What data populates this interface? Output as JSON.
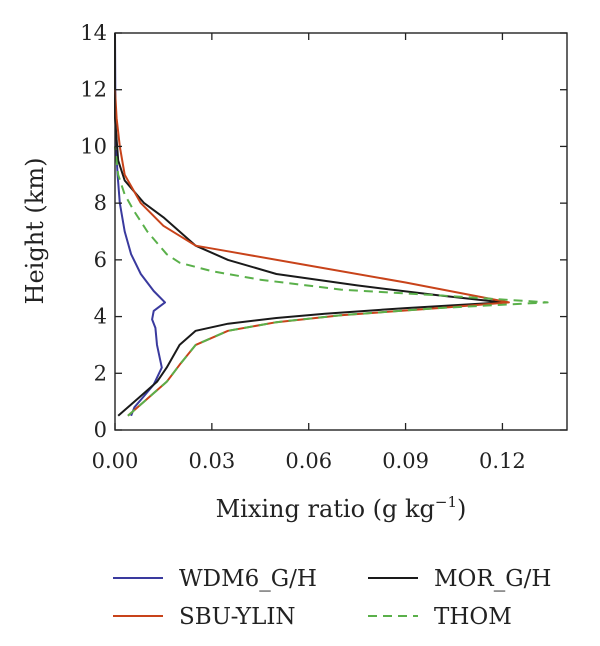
{
  "chart_data": {
    "type": "line",
    "xlabel": "Mixing ratio (g kg",
    "xlabel_exponent": "−1",
    "xlabel_close": ")",
    "ylabel": "Height (km)",
    "xlim": [
      0,
      0.14
    ],
    "ylim": [
      0,
      14
    ],
    "x_ticks": [
      0,
      0.03,
      0.06,
      0.09,
      0.12
    ],
    "x_tick_labels": [
      "0.00",
      "0.03",
      "0.06",
      "0.09",
      "0.12"
    ],
    "y_ticks": [
      0,
      2,
      4,
      6,
      8,
      10,
      12,
      14
    ],
    "y_tick_labels": [
      "0",
      "2",
      "4",
      "6",
      "8",
      "10",
      "12",
      "14"
    ],
    "grid": false,
    "legend_position": "bottom",
    "series": [
      {
        "name": "WDM6_G/H",
        "color": "#3a3a9e",
        "dash": "solid",
        "points": [
          [
            0.005,
            0.5
          ],
          [
            0.006,
            0.8
          ],
          [
            0.009,
            1.2
          ],
          [
            0.012,
            1.6
          ],
          [
            0.0145,
            2.2
          ],
          [
            0.013,
            3.0
          ],
          [
            0.0125,
            3.6
          ],
          [
            0.0115,
            3.9
          ],
          [
            0.012,
            4.2
          ],
          [
            0.0155,
            4.5
          ],
          [
            0.012,
            4.9
          ],
          [
            0.008,
            5.5
          ],
          [
            0.005,
            6.2
          ],
          [
            0.003,
            7.0
          ],
          [
            0.0015,
            8.0
          ],
          [
            0.0008,
            9.0
          ],
          [
            0.0003,
            10.0
          ],
          [
            0.0001,
            12.0
          ],
          [
            0.0,
            14.0
          ]
        ]
      },
      {
        "name": "MOR_G/H",
        "color": "#1a1a1a",
        "dash": "solid",
        "points": [
          [
            0.001,
            0.5
          ],
          [
            0.005,
            0.9
          ],
          [
            0.009,
            1.3
          ],
          [
            0.013,
            1.7
          ],
          [
            0.016,
            2.2
          ],
          [
            0.02,
            3.0
          ],
          [
            0.025,
            3.5
          ],
          [
            0.035,
            3.75
          ],
          [
            0.05,
            3.95
          ],
          [
            0.065,
            4.1
          ],
          [
            0.09,
            4.3
          ],
          [
            0.12,
            4.5
          ],
          [
            0.1,
            4.75
          ],
          [
            0.075,
            5.1
          ],
          [
            0.05,
            5.5
          ],
          [
            0.035,
            6.0
          ],
          [
            0.025,
            6.5
          ],
          [
            0.015,
            7.5
          ],
          [
            0.009,
            8.0
          ],
          [
            0.003,
            8.8
          ],
          [
            0.001,
            9.5
          ],
          [
            0.0,
            11.0
          ],
          [
            0.0,
            14.0
          ]
        ]
      },
      {
        "name": "SBU-YLIN",
        "color": "#c8431a",
        "dash": "solid",
        "points": [
          [
            0.004,
            0.5
          ],
          [
            0.008,
            0.9
          ],
          [
            0.012,
            1.3
          ],
          [
            0.016,
            1.7
          ],
          [
            0.02,
            2.3
          ],
          [
            0.025,
            3.0
          ],
          [
            0.035,
            3.5
          ],
          [
            0.05,
            3.8
          ],
          [
            0.07,
            4.05
          ],
          [
            0.1,
            4.3
          ],
          [
            0.122,
            4.5
          ],
          [
            0.09,
            5.2
          ],
          [
            0.06,
            5.8
          ],
          [
            0.035,
            6.3
          ],
          [
            0.025,
            6.5
          ],
          [
            0.015,
            7.2
          ],
          [
            0.008,
            8.0
          ],
          [
            0.003,
            9.0
          ],
          [
            0.0015,
            10.0
          ],
          [
            0.0005,
            11.0
          ],
          [
            0.0,
            12.0
          ]
        ]
      },
      {
        "name": "THOM",
        "color": "#5ab04a",
        "dash": "dashed",
        "points": [
          [
            0.004,
            0.5
          ],
          [
            0.008,
            0.9
          ],
          [
            0.012,
            1.3
          ],
          [
            0.016,
            1.7
          ],
          [
            0.02,
            2.3
          ],
          [
            0.025,
            3.0
          ],
          [
            0.035,
            3.5
          ],
          [
            0.05,
            3.8
          ],
          [
            0.07,
            4.05
          ],
          [
            0.1,
            4.3
          ],
          [
            0.134,
            4.5
          ],
          [
            0.1,
            4.75
          ],
          [
            0.07,
            4.95
          ],
          [
            0.045,
            5.3
          ],
          [
            0.03,
            5.6
          ],
          [
            0.02,
            5.9
          ],
          [
            0.016,
            6.2
          ],
          [
            0.01,
            7.0
          ],
          [
            0.006,
            7.7
          ],
          [
            0.003,
            8.3
          ],
          [
            0.001,
            9.0
          ],
          [
            0.0,
            10.0
          ]
        ]
      }
    ]
  }
}
